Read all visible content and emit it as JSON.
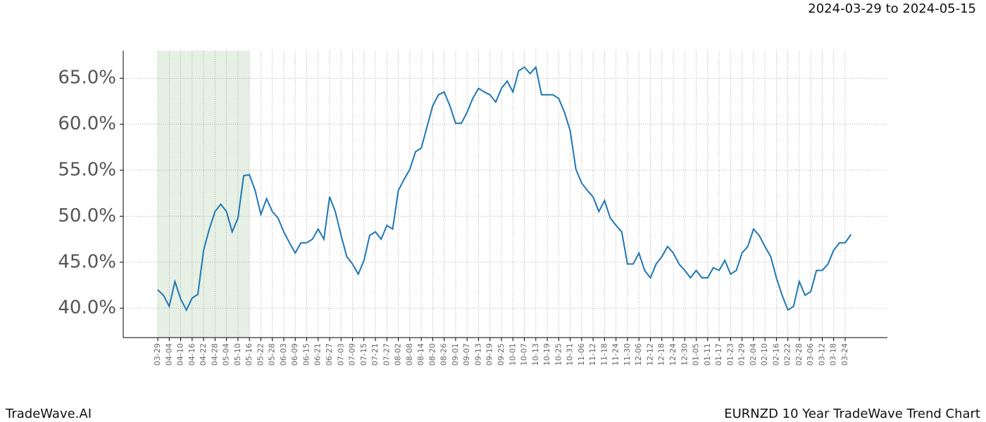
{
  "chart_data": {
    "type": "line",
    "date_range": "2024-03-29 to 2024-05-15",
    "brand": "TradeWave.AI",
    "title": "EURNZD 10 Year TradeWave Trend Chart",
    "categories": [
      "03-29",
      null,
      "04-04",
      null,
      "04-10",
      null,
      "04-16",
      null,
      "04-22",
      null,
      "04-28",
      null,
      "05-04",
      null,
      "05-10",
      null,
      "05-16",
      null,
      "05-22",
      null,
      "05-28",
      null,
      "06-03",
      null,
      "06-09",
      null,
      "06-15",
      null,
      "06-21",
      null,
      "06-27",
      null,
      "07-03",
      null,
      "07-09",
      null,
      "07-15",
      null,
      "07-21",
      null,
      "07-27",
      null,
      "08-02",
      null,
      "08-08",
      null,
      "08-14",
      null,
      "08-20",
      null,
      "08-26",
      null,
      "09-01",
      null,
      "09-07",
      null,
      "09-13",
      null,
      "09-19",
      null,
      "09-25",
      null,
      "10-01",
      null,
      "10-07",
      null,
      "10-13",
      null,
      "10-19",
      null,
      "10-25",
      null,
      "10-31",
      null,
      "11-06",
      null,
      "11-12",
      null,
      "11-18",
      null,
      "11-24",
      null,
      "11-30",
      null,
      "12-06",
      null,
      "12-12",
      null,
      "12-18",
      null,
      "12-24",
      null,
      "12-30",
      null,
      "01-05",
      null,
      "01-11",
      null,
      "01-17",
      null,
      "01-23",
      null,
      "01-29",
      null,
      "02-04",
      null,
      "02-10",
      null,
      "02-16",
      null,
      "02-22",
      null,
      "02-28",
      null,
      "03-06",
      null,
      "03-12",
      null,
      "03-18",
      null,
      "03-24",
      null
    ],
    "series": [
      {
        "color": "#1f77b4",
        "values": [
          42.0,
          41.4,
          40.2,
          42.9,
          41.0,
          39.8,
          41.1,
          41.5,
          46.3,
          48.6,
          50.5,
          51.3,
          50.5,
          48.3,
          49.8,
          54.4,
          54.5,
          52.8,
          50.2,
          51.9,
          50.5,
          49.8,
          48.3,
          47.1,
          46.0,
          47.1,
          47.1,
          47.5,
          48.6,
          47.5,
          52.1,
          50.5,
          47.9,
          45.6,
          44.8,
          43.7,
          45.2,
          47.9,
          48.3,
          47.5,
          49.0,
          48.6,
          52.8,
          54.0,
          55.1,
          57.0,
          57.4,
          59.7,
          62.0,
          63.2,
          63.5,
          62.0,
          60.1,
          60.1,
          61.3,
          62.8,
          63.9,
          63.5,
          63.2,
          62.4,
          63.9,
          64.7,
          63.5,
          65.8,
          66.2,
          65.5,
          66.2,
          63.2,
          63.2,
          63.2,
          62.8,
          61.3,
          59.3,
          55.1,
          53.6,
          52.8,
          52.1,
          50.5,
          51.7,
          49.8,
          49.0,
          48.3,
          44.8,
          44.8,
          46.0,
          44.1,
          43.3,
          44.8,
          45.6,
          46.7,
          46.0,
          44.8,
          44.1,
          43.3,
          44.1,
          43.3,
          43.3,
          44.4,
          44.1,
          45.2,
          43.7,
          44.1,
          46.0,
          46.7,
          48.6,
          47.9,
          46.7,
          45.6,
          43.3,
          41.4,
          39.8,
          40.2,
          42.9,
          41.4,
          41.8,
          44.1,
          44.1,
          44.8,
          46.3,
          47.1,
          47.1,
          48.0
        ]
      }
    ],
    "shade": {
      "from": 0,
      "to": 16,
      "color": "#e6f0e4"
    },
    "ylim": [
      36.8,
      68.0
    ],
    "yticks": [
      {
        "value": 40,
        "label": "40.0%"
      },
      {
        "value": 45,
        "label": "45.0%"
      },
      {
        "value": 50,
        "label": "50.0%"
      },
      {
        "value": 55,
        "label": "55.0%"
      },
      {
        "value": 60,
        "label": "60.0%"
      },
      {
        "value": 65,
        "label": "65.0%"
      }
    ],
    "grid": true
  }
}
